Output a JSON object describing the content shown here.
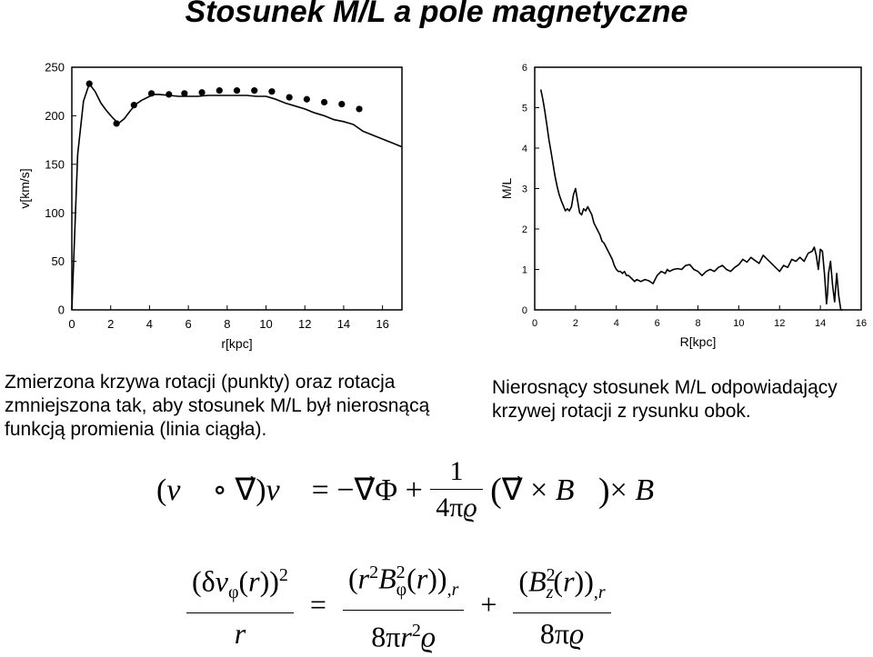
{
  "title": "Stosunek M/L a pole magnetyczne",
  "captions": {
    "left": "Zmierzona krzywa rotacji (punkty) oraz rotacja zmniejszona tak, aby stosunek M/L był nierosnącą funkcją promienia (linia ciągła).",
    "right": "Nierosnący stosunek M/L odpowiadający krzywej rotacji z rysunku obok."
  },
  "chart_data": [
    {
      "type": "line",
      "title": "",
      "xlabel": "r[kpc]",
      "ylabel": "v[km/s]",
      "xlim": [
        0,
        17
      ],
      "ylim": [
        0,
        250
      ],
      "xticks": [
        "0",
        "2",
        "4",
        "6",
        "8",
        "10",
        "12",
        "14",
        "16"
      ],
      "yticks": [
        "0",
        "50",
        "100",
        "150",
        "200",
        "250"
      ],
      "grid": false,
      "series": [
        {
          "style": "points",
          "x": [
            0.9,
            2.3,
            3.2,
            4.1,
            5.0,
            5.8,
            6.7,
            7.6,
            8.5,
            9.4,
            10.3,
            11.2,
            12.1,
            13.0,
            13.9,
            14.8
          ],
          "y": [
            233,
            192,
            211,
            223,
            222,
            223,
            224,
            226,
            226,
            226,
            225,
            219,
            217,
            214,
            212,
            207
          ]
        },
        {
          "style": "line",
          "x": [
            0,
            0.3,
            0.6,
            0.9,
            1.2,
            1.5,
            1.8,
            2.1,
            2.4,
            2.7,
            3.0,
            3.3,
            3.6,
            3.9,
            4.2,
            4.5,
            5.0,
            5.5,
            6.0,
            6.5,
            7.0,
            7.5,
            8.0,
            8.5,
            9.0,
            9.5,
            10.0,
            10.5,
            11.0,
            11.5,
            12.0,
            12.5,
            13.0,
            13.5,
            14.0,
            14.5,
            15.0,
            15.5,
            16.0,
            16.5,
            17.0
          ],
          "y": [
            0,
            160,
            215,
            233,
            225,
            213,
            205,
            198,
            192,
            197,
            205,
            212,
            216,
            219,
            222,
            222,
            221,
            220,
            220,
            220,
            221,
            221,
            221,
            221,
            221,
            220,
            220,
            217,
            213,
            210,
            207,
            203,
            200,
            196,
            194,
            191,
            184,
            180,
            176,
            172,
            168
          ]
        }
      ]
    },
    {
      "type": "line",
      "title": "",
      "xlabel": "R[kpc]",
      "ylabel": "M/L",
      "xlim": [
        0,
        16
      ],
      "ylim": [
        0,
        6
      ],
      "xticks": [
        "0",
        "2",
        "4",
        "6",
        "8",
        "10",
        "12",
        "14",
        "16"
      ],
      "yticks": [
        "0",
        "1",
        "2",
        "3",
        "4",
        "5",
        "6"
      ],
      "grid": false,
      "series": [
        {
          "style": "line",
          "x": [
            0.3,
            0.4,
            0.5,
            0.6,
            0.7,
            0.8,
            0.9,
            1.0,
            1.1,
            1.2,
            1.3,
            1.5,
            1.6,
            1.7,
            1.8,
            1.9,
            2.0,
            2.1,
            2.2,
            2.3,
            2.4,
            2.5,
            2.6,
            2.7,
            2.8,
            2.9,
            3.0,
            3.1,
            3.2,
            3.3,
            3.4,
            3.5,
            3.6,
            3.7,
            3.8,
            3.9,
            4.0,
            4.1,
            4.2,
            4.3,
            4.4,
            4.5,
            4.6,
            4.7,
            4.8,
            4.9,
            5.0,
            5.2,
            5.4,
            5.6,
            5.8,
            6.0,
            6.2,
            6.4,
            6.5,
            6.6,
            6.8,
            7.0,
            7.2,
            7.4,
            7.6,
            7.8,
            8.0,
            8.2,
            8.4,
            8.6,
            8.8,
            9.0,
            9.2,
            9.4,
            9.6,
            9.8,
            10.0,
            10.2,
            10.4,
            10.6,
            10.8,
            11.0,
            11.2,
            11.4,
            11.6,
            11.8,
            12.0,
            12.2,
            12.4,
            12.6,
            12.8,
            13.0,
            13.2,
            13.4,
            13.6,
            13.7,
            13.8,
            13.9,
            14.0,
            14.1,
            14.2,
            14.25,
            14.3,
            14.35,
            14.4,
            14.5,
            14.6,
            14.7,
            14.8,
            14.9,
            15.0,
            15.1
          ],
          "y": [
            5.45,
            5.2,
            4.9,
            4.55,
            4.2,
            3.9,
            3.6,
            3.3,
            3.05,
            2.85,
            2.7,
            2.45,
            2.5,
            2.45,
            2.55,
            2.85,
            3.0,
            2.7,
            2.4,
            2.35,
            2.5,
            2.45,
            2.55,
            2.45,
            2.35,
            2.15,
            2.05,
            1.95,
            1.85,
            1.7,
            1.65,
            1.55,
            1.45,
            1.35,
            1.25,
            1.1,
            1.0,
            0.95,
            0.95,
            0.9,
            0.95,
            0.85,
            0.85,
            0.8,
            0.75,
            0.7,
            0.75,
            0.7,
            0.75,
            0.72,
            0.65,
            0.85,
            0.95,
            0.9,
            1.0,
            0.95,
            1.0,
            1.02,
            1.0,
            1.1,
            1.12,
            1.0,
            0.95,
            0.85,
            0.95,
            1.0,
            0.95,
            1.05,
            1.1,
            1.0,
            0.95,
            1.05,
            1.12,
            1.25,
            1.18,
            1.3,
            1.22,
            1.15,
            1.35,
            1.25,
            1.15,
            1.05,
            0.95,
            1.1,
            1.05,
            1.25,
            1.2,
            1.3,
            1.2,
            1.4,
            1.45,
            1.55,
            1.35,
            1.0,
            1.5,
            1.45,
            0.9,
            0.55,
            0.15,
            0.4,
            0.9,
            1.2,
            0.6,
            0.2,
            0.9,
            0.35,
            0.0,
            0.0
          ]
        }
      ]
    }
  ]
}
